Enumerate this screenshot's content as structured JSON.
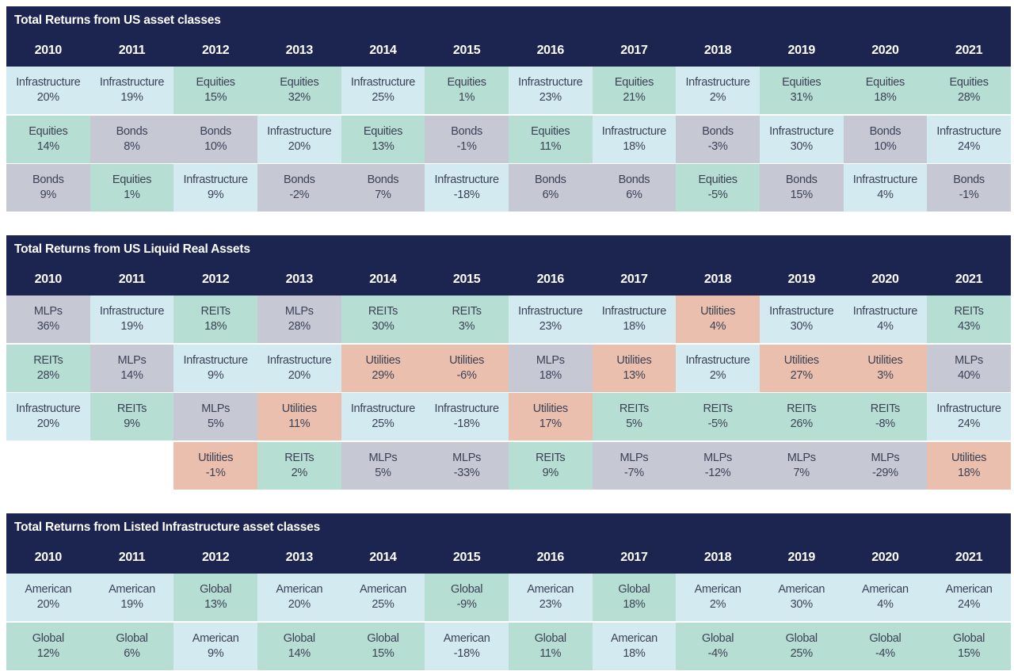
{
  "colors": {
    "header": "#1c2550",
    "Infrastructure": "#d4eaf1",
    "Equities": "#b7ded3",
    "Bonds": "#c6c8d4",
    "MLPs": "#c6c8d4",
    "REITs": "#b7ded3",
    "Utilities": "#ebbfae",
    "American": "#d4eaf1",
    "Global": "#b7ded3"
  },
  "chart_data": [
    {
      "type": "table",
      "title": "Total Returns from US asset classes",
      "years": [
        "2010",
        "2011",
        "2012",
        "2013",
        "2014",
        "2015",
        "2016",
        "2017",
        "2018",
        "2019",
        "2020",
        "2021"
      ],
      "columns": [
        [
          {
            "name": "Infrastructure",
            "value": "20%"
          },
          {
            "name": "Equities",
            "value": "14%"
          },
          {
            "name": "Bonds",
            "value": "9%"
          }
        ],
        [
          {
            "name": "Infrastructure",
            "value": "19%"
          },
          {
            "name": "Bonds",
            "value": "8%"
          },
          {
            "name": "Equities",
            "value": "1%"
          }
        ],
        [
          {
            "name": "Equities",
            "value": "15%"
          },
          {
            "name": "Bonds",
            "value": "10%"
          },
          {
            "name": "Infrastructure",
            "value": "9%"
          }
        ],
        [
          {
            "name": "Equities",
            "value": "32%"
          },
          {
            "name": "Infrastructure",
            "value": "20%"
          },
          {
            "name": "Bonds",
            "value": "-2%"
          }
        ],
        [
          {
            "name": "Infrastructure",
            "value": "25%"
          },
          {
            "name": "Equities",
            "value": "13%"
          },
          {
            "name": "Bonds",
            "value": "7%"
          }
        ],
        [
          {
            "name": "Equities",
            "value": "1%"
          },
          {
            "name": "Bonds",
            "value": "-1%"
          },
          {
            "name": "Infrastructure",
            "value": "-18%"
          }
        ],
        [
          {
            "name": "Infrastructure",
            "value": "23%"
          },
          {
            "name": "Equities",
            "value": "11%"
          },
          {
            "name": "Bonds",
            "value": "6%"
          }
        ],
        [
          {
            "name": "Equities",
            "value": "21%"
          },
          {
            "name": "Infrastructure",
            "value": "18%"
          },
          {
            "name": "Bonds",
            "value": "6%"
          }
        ],
        [
          {
            "name": "Infrastructure",
            "value": "2%"
          },
          {
            "name": "Bonds",
            "value": "-3%"
          },
          {
            "name": "Equities",
            "value": "-5%"
          }
        ],
        [
          {
            "name": "Equities",
            "value": "31%"
          },
          {
            "name": "Infrastructure",
            "value": "30%"
          },
          {
            "name": "Bonds",
            "value": "15%"
          }
        ],
        [
          {
            "name": "Equities",
            "value": "18%"
          },
          {
            "name": "Bonds",
            "value": "10%"
          },
          {
            "name": "Infrastructure",
            "value": "4%"
          }
        ],
        [
          {
            "name": "Equities",
            "value": "28%"
          },
          {
            "name": "Infrastructure",
            "value": "24%"
          },
          {
            "name": "Bonds",
            "value": "-1%"
          }
        ]
      ]
    },
    {
      "type": "table",
      "title": "Total Returns from US Liquid Real Assets",
      "years": [
        "2010",
        "2011",
        "2012",
        "2013",
        "2014",
        "2015",
        "2016",
        "2017",
        "2018",
        "2019",
        "2020",
        "2021"
      ],
      "columns": [
        [
          {
            "name": "MLPs",
            "value": "36%"
          },
          {
            "name": "REITs",
            "value": "28%"
          },
          {
            "name": "Infrastructure",
            "value": "20%"
          }
        ],
        [
          {
            "name": "Infrastructure",
            "value": "19%"
          },
          {
            "name": "MLPs",
            "value": "14%"
          },
          {
            "name": "REITs",
            "value": "9%"
          }
        ],
        [
          {
            "name": "REITs",
            "value": "18%"
          },
          {
            "name": "Infrastructure",
            "value": "9%"
          },
          {
            "name": "MLPs",
            "value": "5%"
          },
          {
            "name": "Utilities",
            "value": "-1%"
          }
        ],
        [
          {
            "name": "MLPs",
            "value": "28%"
          },
          {
            "name": "Infrastructure",
            "value": "20%"
          },
          {
            "name": "Utilities",
            "value": "11%"
          },
          {
            "name": "REITs",
            "value": "2%"
          }
        ],
        [
          {
            "name": "REITs",
            "value": "30%"
          },
          {
            "name": "Utilities",
            "value": "29%"
          },
          {
            "name": "Infrastructure",
            "value": "25%"
          },
          {
            "name": "MLPs",
            "value": "5%"
          }
        ],
        [
          {
            "name": "REITs",
            "value": "3%"
          },
          {
            "name": "Utilities",
            "value": "-6%"
          },
          {
            "name": "Infrastructure",
            "value": "-18%"
          },
          {
            "name": "MLPs",
            "value": "-33%"
          }
        ],
        [
          {
            "name": "Infrastructure",
            "value": "23%"
          },
          {
            "name": "MLPs",
            "value": "18%"
          },
          {
            "name": "Utilities",
            "value": "17%"
          },
          {
            "name": "REITs",
            "value": "9%"
          }
        ],
        [
          {
            "name": "Infrastructure",
            "value": "18%"
          },
          {
            "name": "Utilities",
            "value": "13%"
          },
          {
            "name": "REITs",
            "value": "5%"
          },
          {
            "name": "MLPs",
            "value": "-7%"
          }
        ],
        [
          {
            "name": "Utilities",
            "value": "4%"
          },
          {
            "name": "Infrastructure",
            "value": "2%"
          },
          {
            "name": "REITs",
            "value": "-5%"
          },
          {
            "name": "MLPs",
            "value": "-12%"
          }
        ],
        [
          {
            "name": "Infrastructure",
            "value": "30%"
          },
          {
            "name": "Utilities",
            "value": "27%"
          },
          {
            "name": "REITs",
            "value": "26%"
          },
          {
            "name": "MLPs",
            "value": "7%"
          }
        ],
        [
          {
            "name": "Infrastructure",
            "value": "4%"
          },
          {
            "name": "Utilities",
            "value": "3%"
          },
          {
            "name": "REITs",
            "value": "-8%"
          },
          {
            "name": "MLPs",
            "value": "-29%"
          }
        ],
        [
          {
            "name": "REITs",
            "value": "43%"
          },
          {
            "name": "MLPs",
            "value": "40%"
          },
          {
            "name": "Infrastructure",
            "value": "24%"
          },
          {
            "name": "Utilities",
            "value": "18%"
          }
        ]
      ]
    },
    {
      "type": "table",
      "title": "Total Returns from Listed Infrastructure asset classes",
      "years": [
        "2010",
        "2011",
        "2012",
        "2013",
        "2014",
        "2015",
        "2016",
        "2017",
        "2018",
        "2019",
        "2020",
        "2021"
      ],
      "columns": [
        [
          {
            "name": "American",
            "value": "20%"
          },
          {
            "name": "Global",
            "value": "12%"
          }
        ],
        [
          {
            "name": "American",
            "value": "19%"
          },
          {
            "name": "Global",
            "value": "6%"
          }
        ],
        [
          {
            "name": "Global",
            "value": "13%"
          },
          {
            "name": "American",
            "value": "9%"
          }
        ],
        [
          {
            "name": "American",
            "value": "20%"
          },
          {
            "name": "Global",
            "value": "14%"
          }
        ],
        [
          {
            "name": "American",
            "value": "25%"
          },
          {
            "name": "Global",
            "value": "15%"
          }
        ],
        [
          {
            "name": "Global",
            "value": "-9%"
          },
          {
            "name": "American",
            "value": "-18%"
          }
        ],
        [
          {
            "name": "American",
            "value": "23%"
          },
          {
            "name": "Global",
            "value": "11%"
          }
        ],
        [
          {
            "name": "Global",
            "value": "18%"
          },
          {
            "name": "American",
            "value": "18%"
          }
        ],
        [
          {
            "name": "American",
            "value": "2%"
          },
          {
            "name": "Global",
            "value": "-4%"
          }
        ],
        [
          {
            "name": "American",
            "value": "30%"
          },
          {
            "name": "Global",
            "value": "25%"
          }
        ],
        [
          {
            "name": "American",
            "value": "4%"
          },
          {
            "name": "Global",
            "value": "-4%"
          }
        ],
        [
          {
            "name": "American",
            "value": "24%"
          },
          {
            "name": "Global",
            "value": "15%"
          }
        ]
      ]
    }
  ]
}
